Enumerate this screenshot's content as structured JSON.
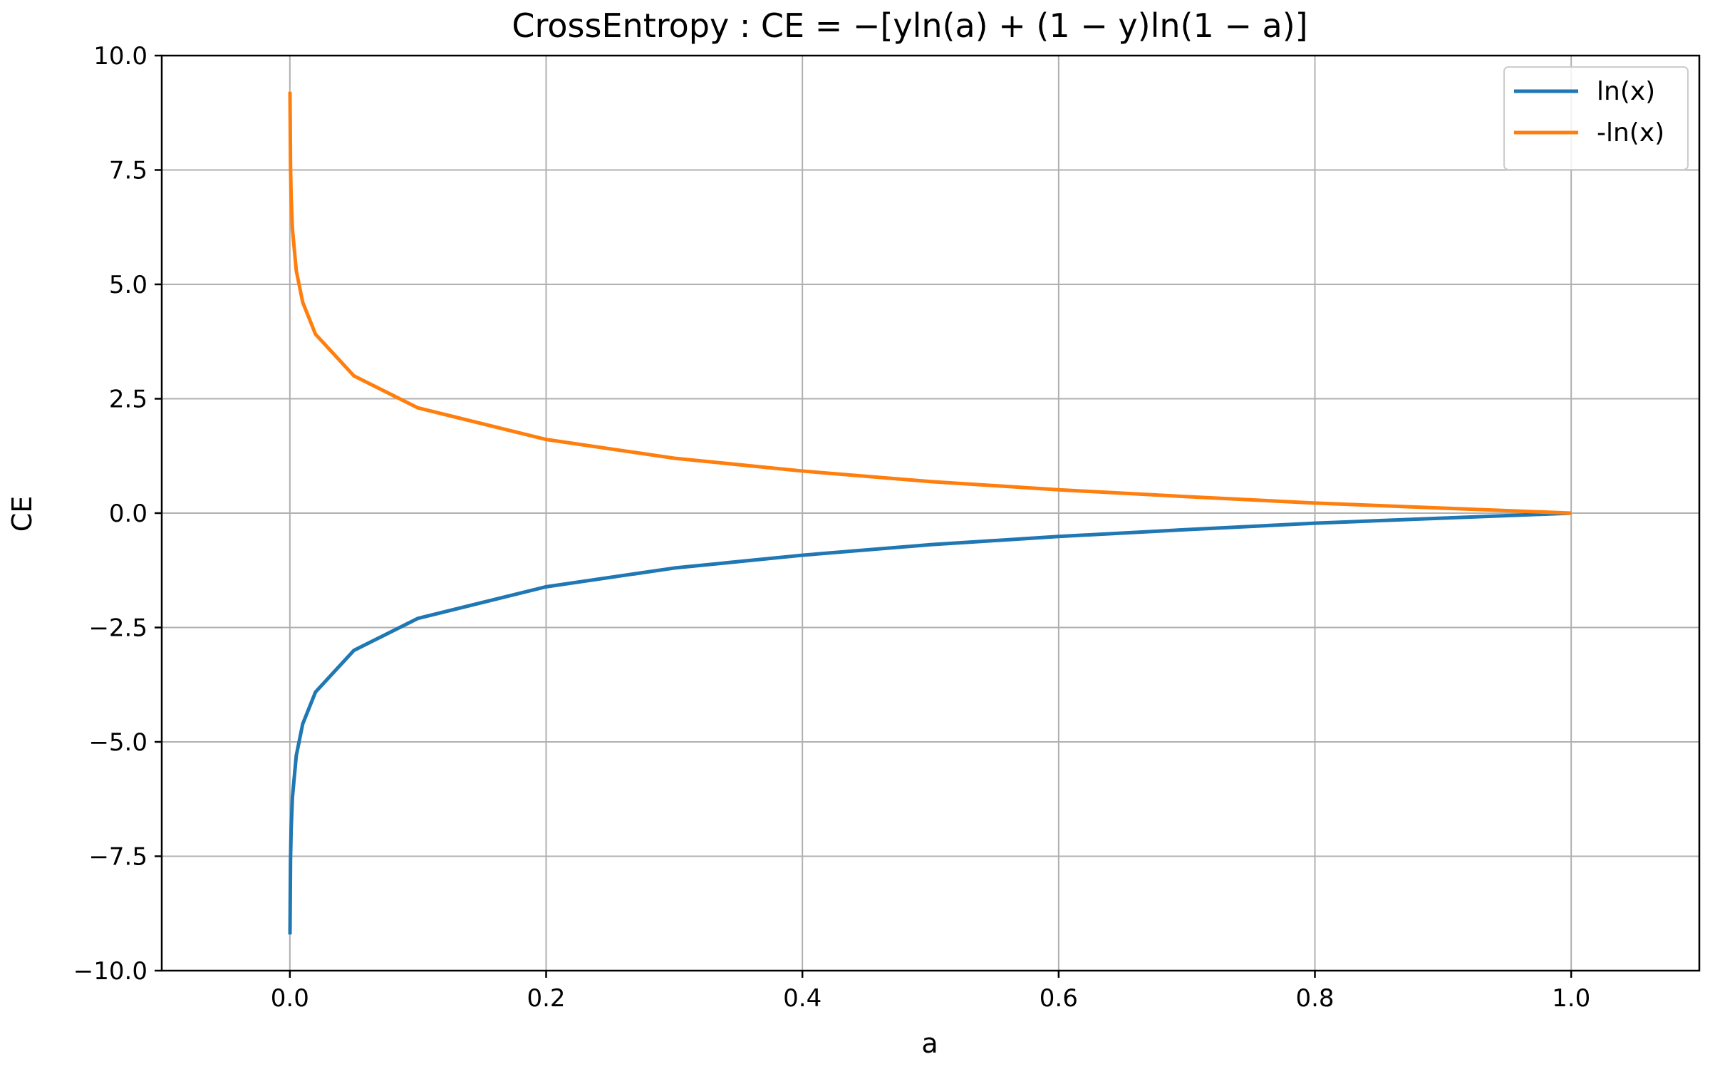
{
  "chart_data": {
    "type": "line",
    "title": "CrossEntropy : CE = −[yln(a) + (1 − y)ln(1 − a)]",
    "xlabel": "a",
    "ylabel": "CE",
    "xlim": [
      -0.1,
      1.1
    ],
    "ylim": [
      -10.0,
      10.0
    ],
    "x_ticks": [
      "0.0",
      "0.2",
      "0.4",
      "0.6",
      "0.8",
      "1.0"
    ],
    "y_ticks": [
      "10.0",
      "7.5",
      "5.0",
      "2.5",
      "0.0",
      "−2.5",
      "−5.0",
      "−7.5",
      "−10.0"
    ],
    "grid": true,
    "legend_position": "top-right",
    "series": [
      {
        "name": "ln(x)",
        "color": "#1f77b4",
        "x": [
          0.0001,
          0.0005,
          0.001,
          0.002,
          0.005,
          0.01,
          0.02,
          0.05,
          0.1,
          0.2,
          0.3,
          0.4,
          0.5,
          0.6,
          0.7,
          0.8,
          0.9,
          1.0
        ],
        "y": [
          -9.21,
          -7.6,
          -6.91,
          -6.21,
          -5.3,
          -4.61,
          -3.91,
          -3.0,
          -2.3,
          -1.61,
          -1.2,
          -0.92,
          -0.69,
          -0.51,
          -0.36,
          -0.22,
          -0.11,
          0.0
        ]
      },
      {
        "name": "-ln(x)",
        "color": "#ff7f0e",
        "x": [
          0.0001,
          0.0005,
          0.001,
          0.002,
          0.005,
          0.01,
          0.02,
          0.05,
          0.1,
          0.2,
          0.3,
          0.4,
          0.5,
          0.6,
          0.7,
          0.8,
          0.9,
          1.0
        ],
        "y": [
          9.21,
          7.6,
          6.91,
          6.21,
          5.3,
          4.61,
          3.91,
          3.0,
          2.3,
          1.61,
          1.2,
          0.92,
          0.69,
          0.51,
          0.36,
          0.22,
          0.11,
          0.0
        ]
      }
    ]
  }
}
